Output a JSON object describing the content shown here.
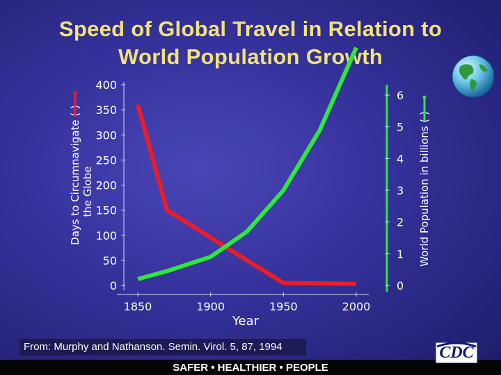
{
  "title_lines": [
    "Speed of Global Travel in Relation to",
    "World Population Growth"
  ],
  "source_text": "From: Murphy and Nathanson. Semin. Virol. 5, 87, 1994",
  "footer_text": "SAFER • HEALTHIER • PEOPLE",
  "logo_text": "CDC",
  "chart_data": {
    "type": "line",
    "xlabel": "Year",
    "x_ticks": [
      1850,
      1900,
      1950,
      2000
    ],
    "xlim": [
      1850,
      2000
    ],
    "left_axis": {
      "label_line1": "Days to Circumnavigate (",
      "label_line1_close": ")",
      "label_line2": "the Globe",
      "ylim": [
        0,
        400
      ],
      "ticks": [
        0,
        50,
        100,
        150,
        200,
        250,
        300,
        350,
        400
      ],
      "color": "#ee1c24"
    },
    "right_axis": {
      "label": "World Population in billions",
      "label_open": "(",
      "label_close": ")",
      "ylim": [
        0,
        6
      ],
      "ticks": [
        0,
        1,
        2,
        3,
        4,
        5,
        6
      ],
      "color": "#2ee83a"
    },
    "series": [
      {
        "axis": "left",
        "color": "#ee1c24",
        "x": [
          1850,
          1870,
          1925,
          1950,
          2000
        ],
        "y": [
          360,
          150,
          50,
          5,
          3
        ]
      },
      {
        "axis": "right",
        "color": "#2ee83a",
        "x": [
          1850,
          1870,
          1900,
          1925,
          1950,
          1975,
          2000
        ],
        "y": [
          0.2,
          0.45,
          0.9,
          1.7,
          3.0,
          4.9,
          7.5
        ]
      }
    ],
    "grid": false,
    "legend": "none"
  }
}
